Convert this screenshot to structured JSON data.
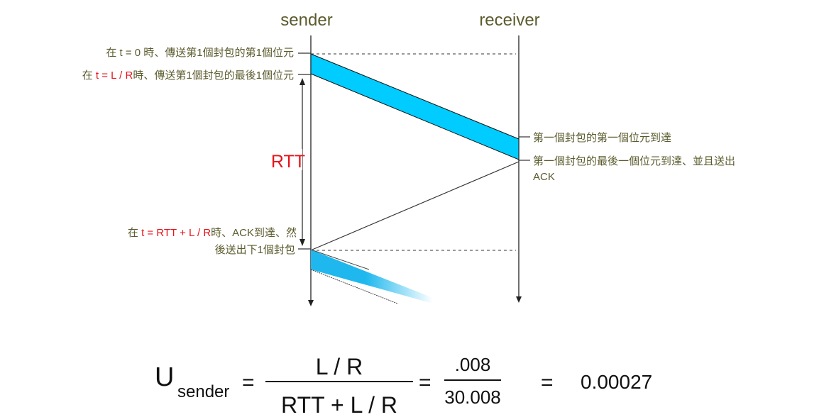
{
  "headers": {
    "sender": "sender",
    "receiver": "receiver"
  },
  "annotations": {
    "first_bit_sent": "在 t = 0 時、傳送第1個封包的第1個位元",
    "last_bit_sent_prefix": "在 ",
    "last_bit_sent_expr": "t = L / R",
    "last_bit_sent_suffix": "時、傳送第1個封包的最後1個位元",
    "rtt": "RTT",
    "first_bit_arrives": "第一個封包的第一個位元到達",
    "last_bit_arrives_line1": "第一個封包的最後一個位元到達、並且送出",
    "last_bit_arrives_line2": "ACK",
    "ack_arrives_prefix": "在 ",
    "ack_arrives_expr": "t = RTT + L / R",
    "ack_arrives_suffix": "時、ACK到達、然",
    "ack_arrives_line2": "後送出下1個封包"
  },
  "formula": {
    "u": "U",
    "subscript": "sender",
    "equals": "=",
    "numerator": "L / R",
    "denominator": "RTT + L / R",
    "value_numerator": ".008",
    "value_denominator": "30.008",
    "result": "0.00027"
  },
  "colors": {
    "packet": "#00ccff",
    "label_text": "#5b5b2e",
    "highlight": "#e8141b",
    "line": "#333333"
  }
}
